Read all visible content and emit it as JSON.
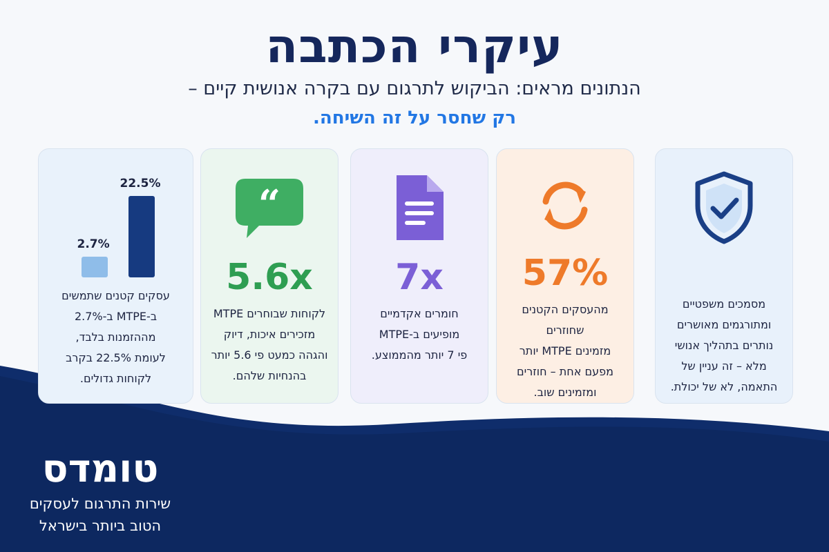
{
  "header": {
    "title": "עיקרי הכתבה",
    "subtitle": "הנתונים מראים: הביקוש לתרגום עם בקרה אנושית קיים –",
    "highlight": "רק שחסר על זה השיחה."
  },
  "cards": [
    {
      "icon": "shield-check-icon",
      "stat": "",
      "desc": [
        "מסמכים משפטיים",
        "ומתורגמים מאושרים",
        "נותרים בתהליך אנושי",
        "מלא – זה עניין של",
        "התאמה, לא של יכולת."
      ]
    },
    {
      "icon": "sync-arrows-icon",
      "stat": "57%",
      "desc": [
        "מהעסקים הקטנים שחוזרים",
        "מזמינים MTPE יותר",
        "מפעם אחת – חוזרים",
        "ומזמינים שוב."
      ]
    },
    {
      "icon": "document-icon",
      "stat": "7x",
      "desc": [
        "חומרים אקדמיים",
        "מופיעים ב-MTPE",
        "פי 7 יותר מהממוצע."
      ]
    },
    {
      "icon": "quote-bubble-icon",
      "stat": "5.6x",
      "desc": [
        "לקוחות שבוחרים MTPE",
        "מזכירים איכות, דיוק",
        "והגהה כמעט פי 5.6 יותר",
        "בהנחיות שלהם."
      ]
    },
    {
      "icon": "bar-chart-icon",
      "stat": "",
      "desc": [
        "עסקים קטנים שתמשים",
        "ב-MTPE ב-2.7%",
        "מההזמנות בלבד,",
        "לעומת 22.5% בקרב",
        "לקוחות גדולים."
      ]
    }
  ],
  "chart_data": {
    "type": "bar",
    "categories": [
      "",
      ""
    ],
    "values": [
      2.7,
      22.5
    ],
    "value_labels": [
      "2.7%",
      "22.5%"
    ],
    "colors": [
      "#8fbde9",
      "#163a80"
    ]
  },
  "brand": {
    "name": "טומדס",
    "tagline_1": "שירות התרגום לעסקים",
    "tagline_2": "הטוב ביותר בישראל"
  },
  "colors": {
    "navy": "#15275c",
    "accent_blue": "#2277e4",
    "orange": "#ee7a2a",
    "purple": "#7b5fd6",
    "green": "#2e9e52"
  }
}
